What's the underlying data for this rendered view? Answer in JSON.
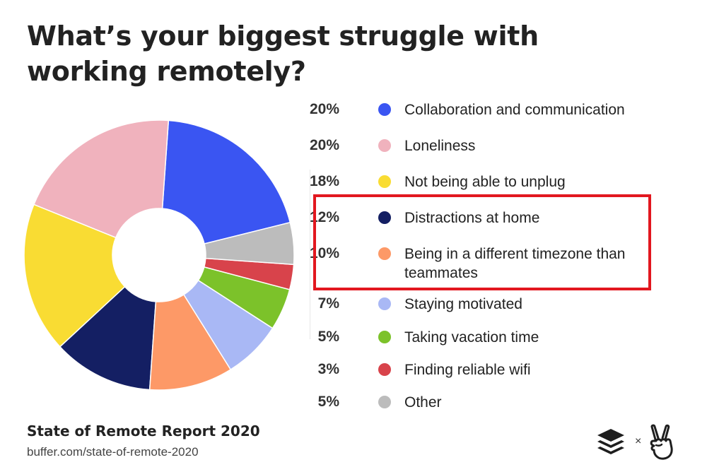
{
  "title": "What’s your biggest struggle with working remotely?",
  "chart_data": {
    "type": "pie",
    "style": "donut",
    "title": "What’s your biggest struggle with working remotely?",
    "categories": [
      "Collaboration and communication",
      "Loneliness",
      "Not being able to unplug",
      "Distractions at home",
      "Being in a different timezone than teammates",
      "Staying motivated",
      "Taking vacation time",
      "Finding reliable wifi",
      "Other"
    ],
    "values": [
      20,
      20,
      18,
      12,
      10,
      7,
      5,
      3,
      5
    ],
    "value_labels": [
      "20%",
      "20%",
      "18%",
      "12%",
      "10%",
      "7%",
      "5%",
      "3%",
      "5%"
    ],
    "colors": [
      "#3a55f2",
      "#f0b2bd",
      "#f9dc33",
      "#141f63",
      "#fd9967",
      "#a9b8f5",
      "#7cc22a",
      "#d8434b",
      "#bcbcbc"
    ],
    "legend": "right",
    "highlighted": [
      "Distractions at home",
      "Being in a different timezone than teammates"
    ]
  },
  "highlight_color": "#e2171f",
  "footer": {
    "report": "State of Remote Report 2020",
    "url": "buffer.com/state-of-remote-2020",
    "separator": "×",
    "logos": [
      "buffer-logo-icon",
      "angellist-victory-hand-icon"
    ]
  }
}
